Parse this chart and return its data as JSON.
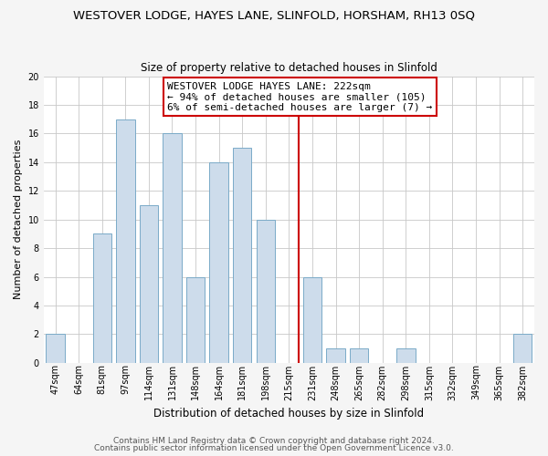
{
  "title": "WESTOVER LODGE, HAYES LANE, SLINFOLD, HORSHAM, RH13 0SQ",
  "subtitle": "Size of property relative to detached houses in Slinfold",
  "xlabel": "Distribution of detached houses by size in Slinfold",
  "ylabel": "Number of detached properties",
  "bar_labels": [
    "47sqm",
    "64sqm",
    "81sqm",
    "97sqm",
    "114sqm",
    "131sqm",
    "148sqm",
    "164sqm",
    "181sqm",
    "198sqm",
    "215sqm",
    "231sqm",
    "248sqm",
    "265sqm",
    "282sqm",
    "298sqm",
    "315sqm",
    "332sqm",
    "349sqm",
    "365sqm",
    "382sqm"
  ],
  "bar_values": [
    2,
    0,
    9,
    17,
    11,
    16,
    6,
    14,
    15,
    10,
    0,
    6,
    1,
    1,
    0,
    1,
    0,
    0,
    0,
    0,
    2
  ],
  "bar_color": "#cddceb",
  "bar_edge_color": "#7aaac8",
  "vline_color": "#cc0000",
  "ylim": [
    0,
    20
  ],
  "yticks": [
    0,
    2,
    4,
    6,
    8,
    10,
    12,
    14,
    16,
    18,
    20
  ],
  "annotation_title": "WESTOVER LODGE HAYES LANE: 222sqm",
  "annotation_line1": "← 94% of detached houses are smaller (105)",
  "annotation_line2": "6% of semi-detached houses are larger (7) →",
  "footer1": "Contains HM Land Registry data © Crown copyright and database right 2024.",
  "footer2": "Contains public sector information licensed under the Open Government Licence v3.0.",
  "background_color": "#f5f5f5",
  "plot_bg_color": "#ffffff",
  "title_fontsize": 9.5,
  "subtitle_fontsize": 8.5,
  "ylabel_fontsize": 8,
  "xlabel_fontsize": 8.5,
  "tick_fontsize": 7,
  "annotation_fontsize": 8,
  "footer_fontsize": 6.5
}
